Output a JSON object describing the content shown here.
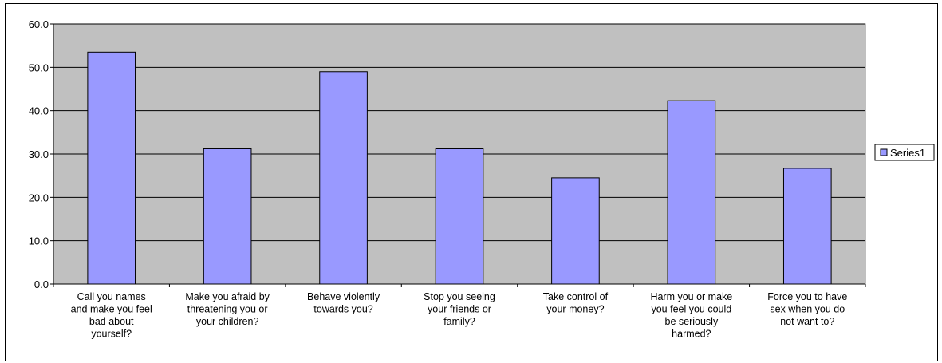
{
  "chart_data": {
    "type": "bar",
    "categories": [
      [
        "Call you names",
        "and make you feel",
        "bad about",
        "yourself?"
      ],
      [
        "Make you afraid by",
        "threatening you or",
        "your children?"
      ],
      [
        "Behave violently",
        "towards you?"
      ],
      [
        "Stop you seeing",
        "your friends or",
        "family?"
      ],
      [
        "Take control of",
        "your money?"
      ],
      [
        "Harm you or make",
        "you feel you could",
        "be seriously",
        "harmed?"
      ],
      [
        "Force you to have",
        "sex when you do",
        "not want to?"
      ]
    ],
    "series": [
      {
        "name": "Series1",
        "values": [
          53.5,
          31.2,
          49.0,
          31.2,
          24.5,
          42.3,
          26.7
        ]
      }
    ],
    "yticks": [
      "0.0",
      "10.0",
      "20.0",
      "30.0",
      "40.0",
      "50.0",
      "60.0"
    ],
    "ylim": [
      0,
      60
    ],
    "grid": true,
    "legend": "right",
    "colors": {
      "bar_fill": "#9999ff",
      "bar_stroke": "#000000",
      "plot_bg": "#c0c0c0",
      "grid": "#000000"
    }
  }
}
